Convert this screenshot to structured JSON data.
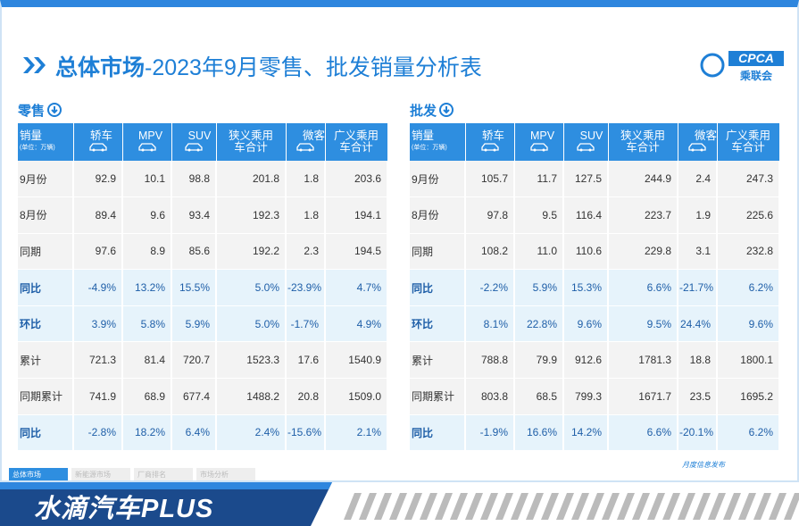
{
  "header": {
    "title_bold": "总体市场",
    "title_rest": "-2023年9月零售、批发销量分析表",
    "logo": "CPCA",
    "logo_sub": "乘联会"
  },
  "tables": [
    {
      "title": "零售",
      "unit_label": "销量",
      "unit_sub": "(单位：万辆)",
      "columns": [
        "轿车",
        "MPV",
        "SUV",
        "狭义乘用车合计",
        "微客",
        "广义乘用车合计"
      ],
      "rows": [
        [
          "9月份",
          "92.9",
          "10.1",
          "98.8",
          "201.8",
          "1.8",
          "203.6"
        ],
        [
          "8月份",
          "89.4",
          "9.6",
          "93.4",
          "192.3",
          "1.8",
          "194.1"
        ],
        [
          "同期",
          "97.6",
          "8.9",
          "85.6",
          "192.2",
          "2.3",
          "194.5"
        ],
        [
          "同比",
          "-4.9%",
          "13.2%",
          "15.5%",
          "5.0%",
          "-23.9%",
          "4.7%"
        ],
        [
          "环比",
          "3.9%",
          "5.8%",
          "5.9%",
          "5.0%",
          "-1.7%",
          "4.9%"
        ],
        [
          "累计",
          "721.3",
          "81.4",
          "720.7",
          "1523.3",
          "17.6",
          "1540.9"
        ],
        [
          "同期累计",
          "741.9",
          "68.9",
          "677.4",
          "1488.2",
          "20.8",
          "1509.0"
        ],
        [
          "同比",
          "-2.8%",
          "18.2%",
          "6.4%",
          "2.4%",
          "-15.6%",
          "2.1%"
        ]
      ]
    },
    {
      "title": "批发",
      "unit_label": "销量",
      "unit_sub": "(单位：万辆)",
      "columns": [
        "轿车",
        "MPV",
        "SUV",
        "狭义乘用车合计",
        "微客",
        "广义乘用车合计"
      ],
      "rows": [
        [
          "9月份",
          "105.7",
          "11.7",
          "127.5",
          "244.9",
          "2.4",
          "247.3"
        ],
        [
          "8月份",
          "97.8",
          "9.5",
          "116.4",
          "223.7",
          "1.9",
          "225.6"
        ],
        [
          "同期",
          "108.2",
          "11.0",
          "110.6",
          "229.8",
          "3.1",
          "232.8"
        ],
        [
          "同比",
          "-2.2%",
          "5.9%",
          "15.3%",
          "6.6%",
          "-21.7%",
          "6.2%"
        ],
        [
          "环比",
          "8.1%",
          "22.8%",
          "9.6%",
          "9.5%",
          "24.4%",
          "9.6%"
        ],
        [
          "累计",
          "788.8",
          "79.9",
          "912.6",
          "1781.3",
          "18.8",
          "1800.1"
        ],
        [
          "同期累计",
          "803.8",
          "68.5",
          "799.3",
          "1671.7",
          "23.5",
          "1695.2"
        ],
        [
          "同比",
          "-1.9%",
          "16.6%",
          "14.2%",
          "6.6%",
          "-20.1%",
          "6.2%"
        ]
      ]
    }
  ],
  "tabs": [
    "总体市场",
    "新能源市场",
    "厂商排名",
    "市场分析"
  ],
  "footer_note": "月度信息发布",
  "banner": "水滴汽车PLUS"
}
